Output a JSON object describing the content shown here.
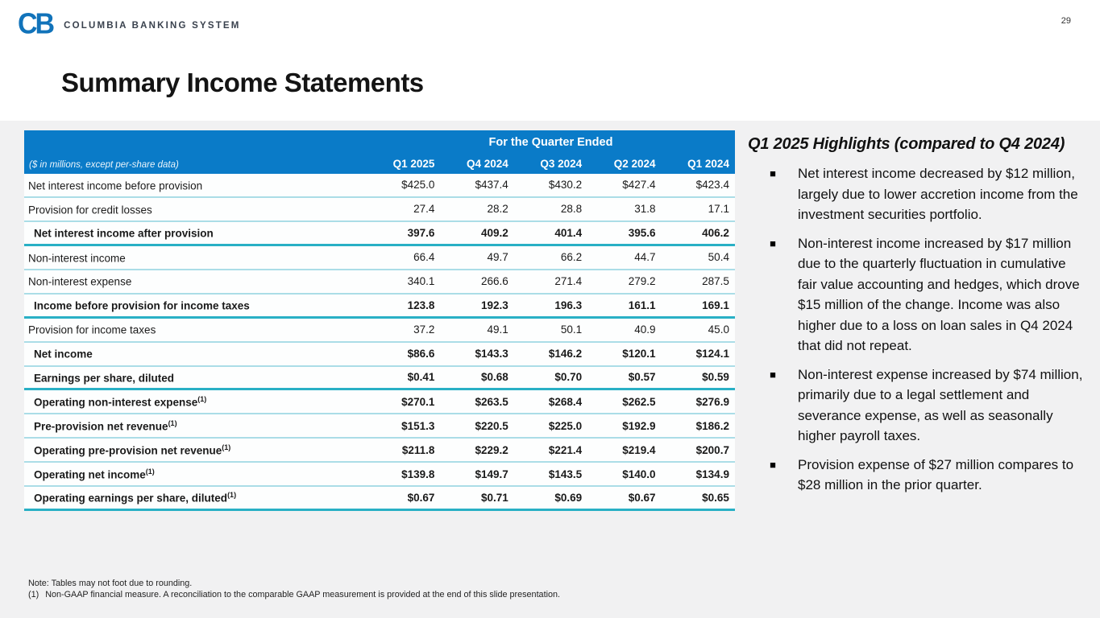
{
  "page_number": "29",
  "logo": {
    "mark": "CB",
    "wordmark": "COLUMBIA BANKING SYSTEM"
  },
  "title": "Summary Income Statements",
  "table": {
    "span_header": "For the Quarter Ended",
    "unit_note": "($ in millions, except per-share data)",
    "columns": [
      "Q1 2025",
      "Q4 2024",
      "Q3 2024",
      "Q2 2024",
      "Q1 2024"
    ],
    "rows": [
      {
        "label": "Net interest income before provision",
        "sup": "",
        "bold": false,
        "divider": "thin",
        "values": [
          "$425.0",
          "$437.4",
          "$430.2",
          "$427.4",
          "$423.4"
        ]
      },
      {
        "label": "Provision for credit losses",
        "sup": "",
        "bold": false,
        "divider": "thin",
        "values": [
          "27.4",
          "28.2",
          "28.8",
          "31.8",
          "17.1"
        ]
      },
      {
        "label": "Net interest income after provision",
        "sup": "",
        "bold": true,
        "divider": "thick",
        "values": [
          "397.6",
          "409.2",
          "401.4",
          "395.6",
          "406.2"
        ]
      },
      {
        "label": "Non-interest income",
        "sup": "",
        "bold": false,
        "divider": "thin",
        "values": [
          "66.4",
          "49.7",
          "66.2",
          "44.7",
          "50.4"
        ]
      },
      {
        "label": "Non-interest expense",
        "sup": "",
        "bold": false,
        "divider": "thin",
        "values": [
          "340.1",
          "266.6",
          "271.4",
          "279.2",
          "287.5"
        ]
      },
      {
        "label": "Income before provision for income taxes",
        "sup": "",
        "bold": true,
        "divider": "thick",
        "values": [
          "123.8",
          "192.3",
          "196.3",
          "161.1",
          "169.1"
        ]
      },
      {
        "label": "Provision for income taxes",
        "sup": "",
        "bold": false,
        "divider": "thin",
        "values": [
          "37.2",
          "49.1",
          "50.1",
          "40.9",
          "45.0"
        ]
      },
      {
        "label": "Net income",
        "sup": "",
        "bold": true,
        "divider": "thin",
        "values": [
          "$86.6",
          "$143.3",
          "$146.2",
          "$120.1",
          "$124.1"
        ]
      },
      {
        "label": "Earnings per share, diluted",
        "sup": "",
        "bold": true,
        "divider": "thick",
        "values": [
          "$0.41",
          "$0.68",
          "$0.70",
          "$0.57",
          "$0.59"
        ]
      },
      {
        "label": "Operating non-interest expense",
        "sup": "(1)",
        "bold": true,
        "divider": "thin",
        "values": [
          "$270.1",
          "$263.5",
          "$268.4",
          "$262.5",
          "$276.9"
        ]
      },
      {
        "label": "Pre-provision net revenue",
        "sup": "(1)",
        "bold": true,
        "divider": "thin",
        "values": [
          "$151.3",
          "$220.5",
          "$225.0",
          "$192.9",
          "$186.2"
        ]
      },
      {
        "label": "Operating pre-provision net revenue",
        "sup": "(1)",
        "bold": true,
        "divider": "thin",
        "values": [
          "$211.8",
          "$229.2",
          "$221.4",
          "$219.4",
          "$200.7"
        ]
      },
      {
        "label": "Operating net income",
        "sup": "(1)",
        "bold": true,
        "divider": "thin",
        "values": [
          "$139.8",
          "$149.7",
          "$143.5",
          "$140.0",
          "$134.9"
        ]
      },
      {
        "label": "Operating earnings per share, diluted",
        "sup": "(1)",
        "bold": true,
        "divider": "thick",
        "values": [
          "$0.67",
          "$0.71",
          "$0.69",
          "$0.67",
          "$0.65"
        ]
      }
    ]
  },
  "highlights": {
    "heading": "Q1 2025 Highlights (compared to Q4 2024)",
    "bullet_glyph": "■",
    "bullets": [
      "Net interest income decreased by $12 million, largely due to lower accretion income from the investment securities portfolio.",
      "Non-interest income increased by $17 million due to the quarterly fluctuation in cumulative fair value accounting and hedges, which drove $15 million of the change. Income was also higher due to a loss on loan sales in Q4 2024 that did not repeat.",
      "Non-interest expense increased by $74 million, primarily due to a legal settlement and severance expense, as well as seasonally higher payroll taxes.",
      "Provision expense of $27 million compares to $28 million in the prior quarter."
    ]
  },
  "footnotes": {
    "note": "Note: Tables may not foot due to rounding.",
    "ref_marker": "(1)",
    "ref_text": "Non-GAAP financial measure.  A reconciliation to the comparable GAAP measurement is provided at the end of this slide presentation."
  },
  "colors": {
    "header_blue": "#0a7bc8",
    "divider_thick_teal": "#29b0c5",
    "divider_thin_teal": "#abdde7",
    "content_background": "#f1f1f2",
    "logo_blue": "#1173ba"
  }
}
